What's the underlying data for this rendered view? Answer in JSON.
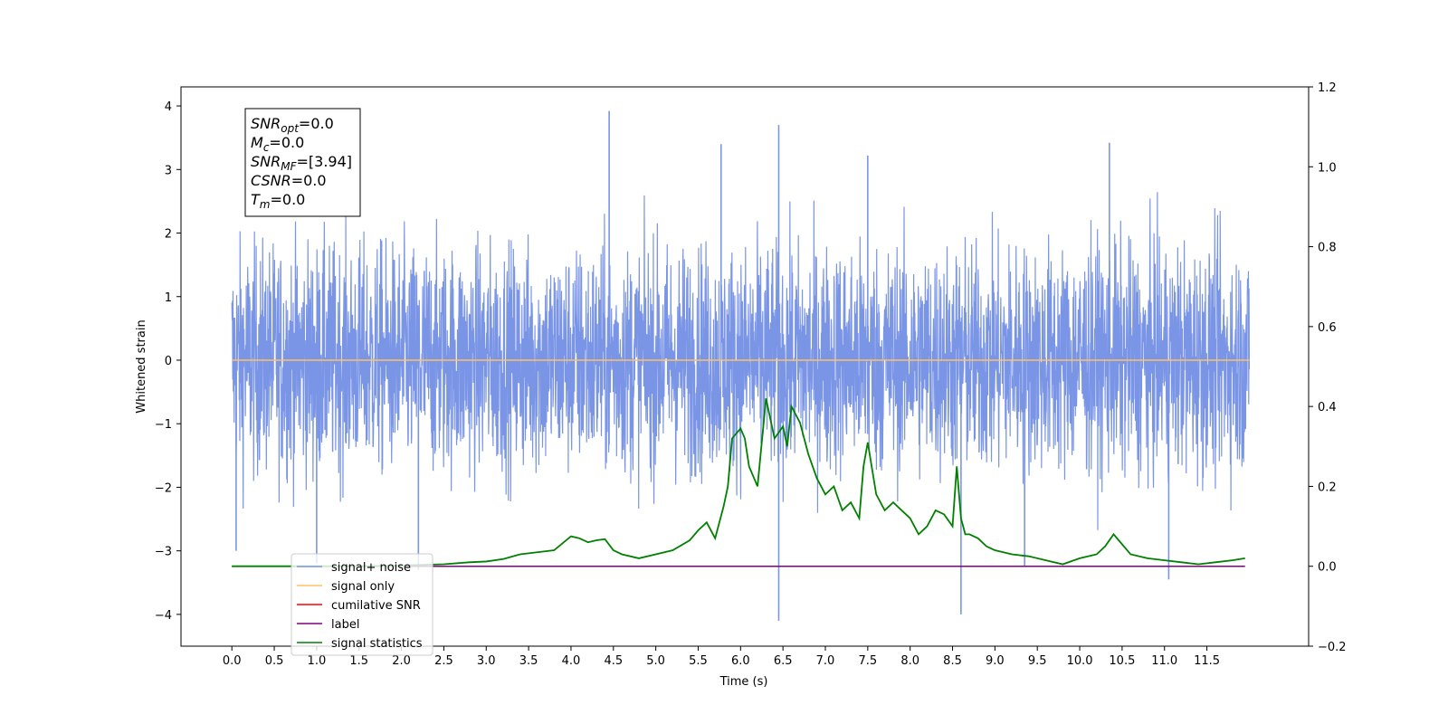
{
  "chart_data": {
    "type": "line",
    "xlabel": "Time (s)",
    "ylabel": "Whitened strain",
    "xlim": [
      -0.6,
      12.7
    ],
    "ylim": [
      -4.5,
      4.3
    ],
    "ylim_right": [
      -0.2,
      1.2
    ],
    "x_ticks": [
      "0.0",
      "0.5",
      "1.0",
      "1.5",
      "2.0",
      "2.5",
      "3.0",
      "3.5",
      "4.0",
      "4.5",
      "5.0",
      "5.5",
      "6.0",
      "6.5",
      "7.0",
      "7.5",
      "8.0",
      "8.5",
      "9.0",
      "9.5",
      "10.0",
      "10.5",
      "11.0",
      "11.5"
    ],
    "y_ticks": [
      "4",
      "3",
      "2",
      "1",
      "0",
      "−1",
      "−2",
      "−3",
      "−4"
    ],
    "y_ticks_right": [
      "1.2",
      "1.0",
      "0.8",
      "0.6",
      "0.4",
      "0.2",
      "0.0",
      "−0.2"
    ],
    "grid": false,
    "legend_placement": "lower-left",
    "annotation": {
      "lines": [
        {
          "base": "SNR",
          "sub": "opt",
          "value": "=0.0"
        },
        {
          "base": "M",
          "sub": "c",
          "value": "=0.0"
        },
        {
          "base": "SNR",
          "sub": "MF",
          "value": "=[3.94]"
        },
        {
          "base": "CSNR",
          "sub": "",
          "value": "=0.0"
        },
        {
          "base": "T",
          "sub": "m",
          "value": "=0.0"
        }
      ]
    },
    "series": [
      {
        "name": "signal+ noise",
        "color": "#7a95e6",
        "axis": "left",
        "x_range": [
          0.0,
          12.0
        ],
        "spread": 0.9,
        "spikes": [
          [
            4.45,
            3.92
          ],
          [
            6.45,
            3.7
          ],
          [
            5.77,
            3.4
          ],
          [
            7.5,
            3.22
          ],
          [
            10.35,
            3.42
          ],
          [
            6.45,
            -4.1
          ],
          [
            8.6,
            -4.0
          ],
          [
            11.05,
            -3.45
          ],
          [
            9.35,
            -3.25
          ],
          [
            1.0,
            -3.2
          ],
          [
            2.2,
            -3.3
          ],
          [
            0.05,
            -3.0
          ]
        ]
      },
      {
        "name": "signal only",
        "color": "#ffc266",
        "axis": "left",
        "x": [
          0.0,
          12.0
        ],
        "y": [
          0.0,
          0.0
        ]
      },
      {
        "name": "cumilative SNR",
        "color": "#ff0000",
        "axis": "right",
        "x": [],
        "y": []
      },
      {
        "name": "label",
        "color": "#800080",
        "axis": "right",
        "x": [
          0.0,
          11.95
        ],
        "y": [
          0.0,
          0.0
        ]
      },
      {
        "name": "signal statistics",
        "color": "#008000",
        "axis": "right",
        "x": [
          0.0,
          0.5,
          1.0,
          1.5,
          2.0,
          2.5,
          2.8,
          3.0,
          3.2,
          3.4,
          3.6,
          3.8,
          4.0,
          4.1,
          4.2,
          4.3,
          4.4,
          4.5,
          4.6,
          4.8,
          5.0,
          5.2,
          5.4,
          5.5,
          5.6,
          5.7,
          5.8,
          5.85,
          5.9,
          6.0,
          6.05,
          6.1,
          6.2,
          6.3,
          6.4,
          6.5,
          6.55,
          6.6,
          6.7,
          6.8,
          6.9,
          7.0,
          7.1,
          7.2,
          7.3,
          7.4,
          7.45,
          7.5,
          7.6,
          7.7,
          7.8,
          7.9,
          8.0,
          8.1,
          8.2,
          8.3,
          8.4,
          8.5,
          8.55,
          8.6,
          8.65,
          8.7,
          8.8,
          8.9,
          9.0,
          9.2,
          9.4,
          9.6,
          9.8,
          10.0,
          10.2,
          10.3,
          10.4,
          10.6,
          10.8,
          11.0,
          11.2,
          11.4,
          11.6,
          11.8,
          11.95
        ],
        "y": [
          0.0,
          0.0,
          0.0,
          0.0,
          0.002,
          0.005,
          0.01,
          0.012,
          0.018,
          0.03,
          0.035,
          0.04,
          0.075,
          0.07,
          0.06,
          0.065,
          0.068,
          0.04,
          0.03,
          0.02,
          0.03,
          0.04,
          0.065,
          0.09,
          0.11,
          0.07,
          0.15,
          0.2,
          0.32,
          0.345,
          0.32,
          0.25,
          0.2,
          0.42,
          0.32,
          0.35,
          0.3,
          0.4,
          0.36,
          0.28,
          0.22,
          0.18,
          0.2,
          0.14,
          0.16,
          0.12,
          0.25,
          0.31,
          0.18,
          0.14,
          0.16,
          0.14,
          0.12,
          0.08,
          0.1,
          0.14,
          0.13,
          0.1,
          0.25,
          0.12,
          0.08,
          0.08,
          0.07,
          0.05,
          0.04,
          0.03,
          0.025,
          0.015,
          0.005,
          0.02,
          0.03,
          0.05,
          0.08,
          0.03,
          0.02,
          0.015,
          0.01,
          0.005,
          0.01,
          0.015,
          0.02
        ]
      }
    ]
  }
}
